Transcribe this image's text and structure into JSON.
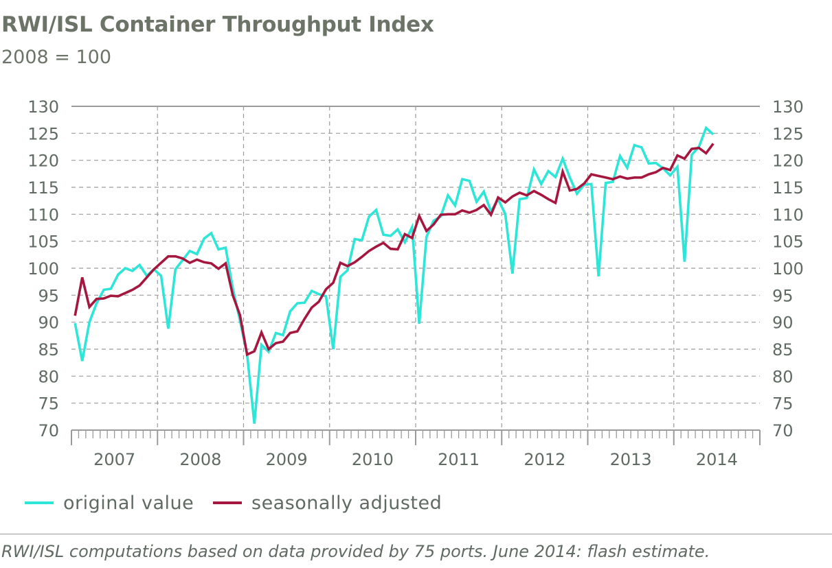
{
  "header": {
    "title": "RWI/ISL Container Throughput Index",
    "subtitle": "2008 = 100"
  },
  "footnote": "RWI/ISL computations based on data provided by 75 ports. June 2014: flash estimate.",
  "colors": {
    "original": "#2ee6d8",
    "adjusted": "#a5173f",
    "grid": "#9a9a9a",
    "axis_text": "#5f6b62"
  },
  "chart_data": {
    "type": "line",
    "title": "RWI/ISL Container Throughput Index",
    "subtitle": "2008 = 100",
    "xlabel": "",
    "ylabel": "",
    "ylim": [
      70,
      130
    ],
    "y_ticks": [
      70,
      75,
      80,
      85,
      90,
      95,
      100,
      105,
      110,
      115,
      120,
      125,
      130
    ],
    "y_axes": "left and right",
    "x_start": "2007-01",
    "x_end": "2014-12",
    "years": [
      "2007",
      "2008",
      "2009",
      "2010",
      "2011",
      "2012",
      "2013",
      "2014"
    ],
    "grid": "dashed vertical at year boundaries, dashed horizontal at every y tick, solid top line",
    "legend_position": "bottom-left",
    "series": [
      {
        "name": "original value",
        "color": "#2ee6d8",
        "start": "2007-01",
        "values": [
          89.8,
          82.8,
          90.0,
          93.5,
          96.0,
          96.2,
          98.8,
          100.0,
          99.5,
          100.6,
          98.6,
          99.8,
          98.6,
          88.8,
          99.8,
          101.5,
          103.2,
          102.6,
          105.5,
          106.5,
          103.5,
          103.8,
          96.3,
          90.3,
          84.0,
          71.2,
          85.8,
          84.5,
          88.0,
          87.6,
          92.0,
          93.5,
          93.6,
          95.8,
          95.2,
          94.8,
          85.0,
          98.4,
          99.6,
          105.4,
          105.2,
          109.6,
          110.8,
          106.2,
          106.0,
          107.2,
          104.8,
          107.6,
          89.7,
          105.8,
          108.8,
          109.6,
          113.5,
          111.6,
          116.5,
          116.2,
          112.3,
          114.2,
          110.5,
          112.8,
          110.0,
          99.0,
          112.8,
          113.0,
          118.3,
          115.6,
          118.0,
          116.9,
          120.3,
          116.8,
          113.8,
          115.5,
          115.6,
          98.5,
          115.8,
          116.0,
          120.8,
          118.6,
          122.8,
          122.4,
          119.4,
          119.5,
          118.5,
          117.2,
          118.8,
          101.2,
          121.0,
          122.5,
          126.0,
          124.8
        ]
      },
      {
        "name": "seasonally adjusted",
        "color": "#a5173f",
        "start": "2007-01",
        "values": [
          91.2,
          98.3,
          92.8,
          94.3,
          94.4,
          94.9,
          94.8,
          95.4,
          96.0,
          96.8,
          98.3,
          99.8,
          101.0,
          102.2,
          102.2,
          101.8,
          101.0,
          101.6,
          101.1,
          100.9,
          99.9,
          100.9,
          95.0,
          91.3,
          84.0,
          84.6,
          88.1,
          85.0,
          86.1,
          86.4,
          88.0,
          88.3,
          90.6,
          92.7,
          93.8,
          96.1,
          97.3,
          101.0,
          100.4,
          101.1,
          102.1,
          103.2,
          104.0,
          104.7,
          103.6,
          103.5,
          106.3,
          105.6,
          109.7,
          106.9,
          108.1,
          109.9,
          110.0,
          110.0,
          110.7,
          110.3,
          110.8,
          111.7,
          109.9,
          113.1,
          112.2,
          113.3,
          114.0,
          113.5,
          114.3,
          113.6,
          112.8,
          112.1,
          117.9,
          114.4,
          114.7,
          115.7,
          117.4,
          117.1,
          116.8,
          116.5,
          117.0,
          116.6,
          116.8,
          116.8,
          117.4,
          117.8,
          118.6,
          118.2,
          120.9,
          120.3,
          122.1,
          122.3,
          121.3,
          123.1
        ]
      }
    ]
  }
}
